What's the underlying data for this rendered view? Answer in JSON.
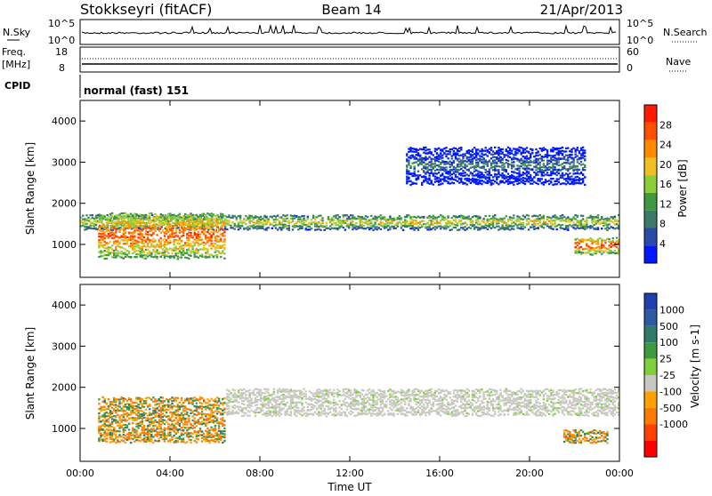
{
  "header": {
    "station": "Stokkseyri (fitACF)",
    "beam": "Beam 14",
    "date": "21/Apr/2013"
  },
  "noise_panel": {
    "left_label": "N.Sky",
    "right_label": "N.Search",
    "ticks": [
      "10^5",
      "10^0"
    ]
  },
  "freq_panel": {
    "left_label_line1": "Freq.",
    "left_label_line2": "[MHz]",
    "left_ticks": [
      "18",
      "8"
    ],
    "right_label": "Nave",
    "right_ticks": [
      "60",
      "0"
    ]
  },
  "cpid_panel": {
    "label": "CPID",
    "value": "normal (fast) 151"
  },
  "colors": {
    "power_scale": [
      "#0018ff",
      "#2a4aa8",
      "#3a7a6a",
      "#3f9a3f",
      "#8ccd3a",
      "#f0c020",
      "#ff8a00",
      "#ff5000",
      "#ff1a00"
    ],
    "velocity_scale": [
      "#2040b0",
      "#2c5aa0",
      "#2f7a6a",
      "#3f9a3f",
      "#7fd03a",
      "#c8c8c0",
      "#ffa000",
      "#ff7a00",
      "#ff4000",
      "#ff0000"
    ]
  },
  "chart_data": [
    {
      "type": "heatmap",
      "title": "Power",
      "xlabel": "",
      "ylabel": "Slant Range [km]",
      "x_ticks": [
        "00:00",
        "04:00",
        "08:00",
        "12:00",
        "16:00",
        "20:00",
        "00:00"
      ],
      "y_ticks": [
        1000,
        2000,
        3000,
        4000
      ],
      "ylim": [
        200,
        4500
      ],
      "xlim_hours": [
        0,
        24
      ],
      "colorbar": {
        "label": "Power [dB]",
        "ticks": [
          4,
          8,
          12,
          16,
          20,
          24,
          28
        ],
        "range": [
          0,
          32
        ]
      },
      "features": [
        {
          "name": "main band",
          "x_hours": [
            0,
            24
          ],
          "range_km": [
            1400,
            1750
          ],
          "power_db": 20
        },
        {
          "name": "early strong echo",
          "x_hours": [
            0.8,
            6.5
          ],
          "range_km": [
            700,
            1800
          ],
          "power_db": 28
        },
        {
          "name": "late strong echo",
          "x_hours": [
            22,
            24
          ],
          "range_km": [
            800,
            1200
          ],
          "power_db": 28
        },
        {
          "name": "upper scatter",
          "x_hours": [
            14.5,
            22.5
          ],
          "range_km": [
            2500,
            3400
          ],
          "power_db": 8
        }
      ]
    },
    {
      "type": "heatmap",
      "title": "Velocity",
      "xlabel": "Time UT",
      "ylabel": "Slant Range [km]",
      "x_ticks": [
        "00:00",
        "04:00",
        "08:00",
        "12:00",
        "16:00",
        "20:00",
        "00:00"
      ],
      "y_ticks": [
        1000,
        2000,
        3000,
        4000
      ],
      "ylim": [
        200,
        4500
      ],
      "xlim_hours": [
        0,
        24
      ],
      "colorbar": {
        "label": "Velocity [m s-1]",
        "ticks": [
          "1000",
          "500",
          "100",
          "25",
          "-25",
          "-100",
          "-500",
          "-1000"
        ]
      },
      "features": [
        {
          "name": "ground scatter band",
          "x_hours": [
            6.5,
            24
          ],
          "range_km": [
            1350,
            2000
          ],
          "velocity_ms": 0
        },
        {
          "name": "early flow",
          "x_hours": [
            0.8,
            6.5
          ],
          "range_km": [
            700,
            1800
          ],
          "velocity_ms": -300
        },
        {
          "name": "late flow",
          "x_hours": [
            21.5,
            23.5
          ],
          "range_km": [
            700,
            1000
          ],
          "velocity_ms": -300
        }
      ]
    }
  ]
}
